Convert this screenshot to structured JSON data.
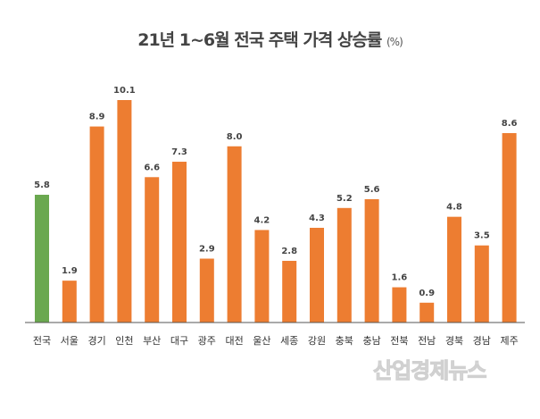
{
  "chart_data": {
    "type": "bar",
    "title": "21년 1~6월 전국 주택 가격 상승률",
    "unit": "(%)",
    "categories": [
      "전국",
      "서울",
      "경기",
      "인천",
      "부산",
      "대구",
      "광주",
      "대전",
      "울산",
      "세종",
      "강원",
      "충북",
      "충남",
      "전북",
      "전남",
      "경북",
      "경남",
      "제주"
    ],
    "values": [
      5.8,
      1.9,
      8.9,
      10.1,
      6.6,
      7.3,
      2.9,
      8.0,
      4.2,
      2.8,
      4.3,
      5.2,
      5.6,
      1.6,
      0.9,
      4.8,
      3.5,
      8.6
    ],
    "data_labels": [
      "5.8",
      "1.9",
      "8.9",
      "10.1",
      "6.6",
      "7.3",
      "2.9",
      "8.0",
      "4.2",
      "2.8",
      "4.3",
      "5.2",
      "5.6",
      "1.6",
      "0.9",
      "4.8",
      "3.5",
      "8.6"
    ],
    "highlight_color": "#6aa84f",
    "bar_color": "#ed7d31",
    "highlight_index": 0,
    "ylim": [
      0,
      10.1
    ],
    "grid": false,
    "legend": "none"
  },
  "watermark": "산업경제뉴스"
}
